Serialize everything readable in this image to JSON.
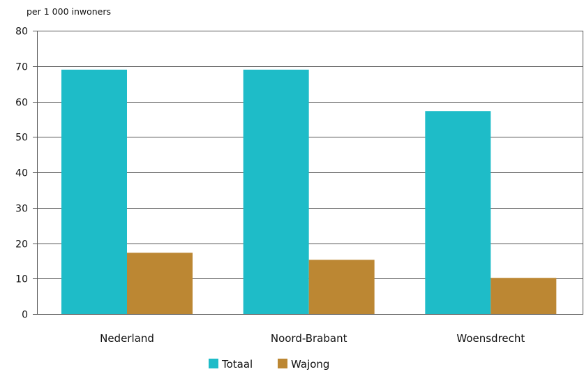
{
  "chart_data": {
    "type": "bar",
    "title": "",
    "ylabel": "per 1 000 inwoners",
    "xlabel": "",
    "categories": [
      "Nederland",
      "Noord-Brabant",
      "Woensdrecht"
    ],
    "series": [
      {
        "name": "Totaal",
        "values": [
          69,
          69,
          57.3
        ],
        "color": "#1ebcc8"
      },
      {
        "name": "Wajong",
        "values": [
          17.3,
          15.3,
          10.2
        ],
        "color": "#bc8733"
      }
    ],
    "ylim": [
      0,
      80
    ],
    "yticks": [
      0,
      10,
      20,
      30,
      40,
      50,
      60,
      70,
      80
    ],
    "grid": true,
    "legend_position": "bottom-center"
  }
}
